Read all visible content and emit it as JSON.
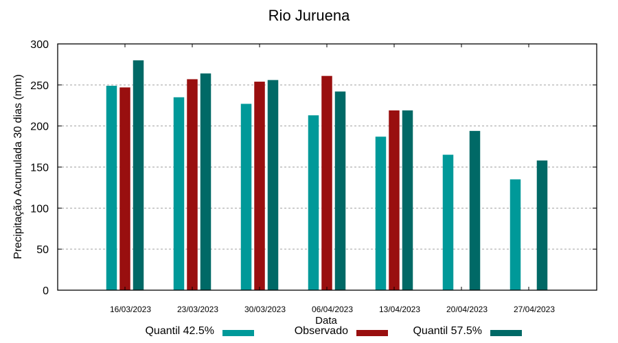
{
  "chart_data": {
    "type": "bar",
    "title": "Rio Juruena",
    "xlabel": "Data",
    "ylabel": "Precipitação Acumulada 30 dias (mm)",
    "ylim": [
      0,
      300
    ],
    "yticks": [
      0,
      50,
      100,
      150,
      200,
      250,
      300
    ],
    "grid": {
      "y": true,
      "x": false,
      "style": "dashed"
    },
    "legend_position": "bottom",
    "categories": [
      "16/03/2023",
      "23/03/2023",
      "30/03/2023",
      "06/04/2023",
      "13/04/2023",
      "20/04/2023",
      "27/04/2023"
    ],
    "series": [
      {
        "name": "Quantil 42.5%",
        "color": "#009999",
        "values": [
          249,
          235,
          227,
          213,
          187,
          165,
          135
        ]
      },
      {
        "name": "Observado",
        "color": "#990f0f",
        "values": [
          247,
          257,
          254,
          261,
          219,
          null,
          null
        ]
      },
      {
        "name": "Quantil 57.5%",
        "color": "#006966",
        "values": [
          280,
          264,
          256,
          242,
          219,
          194,
          158
        ]
      }
    ]
  },
  "colors": {
    "axis": "#000000",
    "grid": "#a0a0a0",
    "background": "#ffffff"
  }
}
